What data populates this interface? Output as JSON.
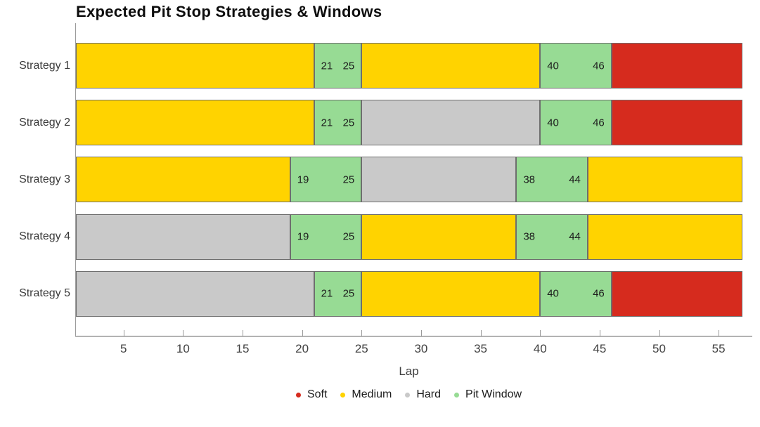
{
  "title": "Expected Pit Stop Strategies & Windows",
  "chart_data": {
    "type": "bar",
    "orientation": "horizontal-stacked",
    "title": "Expected Pit Stop Strategies & Windows",
    "xlabel": "Lap",
    "xlim": [
      1,
      57
    ],
    "xticks": [
      5,
      10,
      15,
      20,
      25,
      30,
      35,
      40,
      45,
      50,
      55
    ],
    "grid": false,
    "legend_position": "bottom-center",
    "categories": [
      "Strategy 1",
      "Strategy 2",
      "Strategy 3",
      "Strategy 4",
      "Strategy 5"
    ],
    "colors": {
      "Soft": "#d62b1e",
      "Medium": "#ffd300",
      "Hard": "#c9c9c9",
      "Pit Window": "#97db94"
    },
    "legend": [
      {
        "label": "Soft",
        "color": "#d62b1e"
      },
      {
        "label": "Medium",
        "color": "#ffd300"
      },
      {
        "label": "Hard",
        "color": "#c9c9c9"
      },
      {
        "label": "Pit Window",
        "color": "#97db94"
      }
    ],
    "bars": [
      {
        "category": "Strategy 1",
        "segments": [
          {
            "compound": "Medium",
            "start": 1,
            "end": 21
          },
          {
            "compound": "Pit Window",
            "start": 21,
            "end": 25,
            "show_labels": true
          },
          {
            "compound": "Medium",
            "start": 25,
            "end": 40
          },
          {
            "compound": "Pit Window",
            "start": 40,
            "end": 46,
            "show_labels": true
          },
          {
            "compound": "Soft",
            "start": 46,
            "end": 57
          }
        ]
      },
      {
        "category": "Strategy 2",
        "segments": [
          {
            "compound": "Medium",
            "start": 1,
            "end": 21
          },
          {
            "compound": "Pit Window",
            "start": 21,
            "end": 25,
            "show_labels": true
          },
          {
            "compound": "Hard",
            "start": 25,
            "end": 40
          },
          {
            "compound": "Pit Window",
            "start": 40,
            "end": 46,
            "show_labels": true
          },
          {
            "compound": "Soft",
            "start": 46,
            "end": 57
          }
        ]
      },
      {
        "category": "Strategy 3",
        "segments": [
          {
            "compound": "Medium",
            "start": 1,
            "end": 19
          },
          {
            "compound": "Pit Window",
            "start": 19,
            "end": 25,
            "show_labels": true
          },
          {
            "compound": "Hard",
            "start": 25,
            "end": 38
          },
          {
            "compound": "Pit Window",
            "start": 38,
            "end": 44,
            "show_labels": true
          },
          {
            "compound": "Medium",
            "start": 44,
            "end": 57
          }
        ]
      },
      {
        "category": "Strategy 4",
        "segments": [
          {
            "compound": "Hard",
            "start": 1,
            "end": 19
          },
          {
            "compound": "Pit Window",
            "start": 19,
            "end": 25,
            "show_labels": true
          },
          {
            "compound": "Medium",
            "start": 25,
            "end": 38
          },
          {
            "compound": "Pit Window",
            "start": 38,
            "end": 44,
            "show_labels": true
          },
          {
            "compound": "Medium",
            "start": 44,
            "end": 57
          }
        ]
      },
      {
        "category": "Strategy 5",
        "segments": [
          {
            "compound": "Hard",
            "start": 1,
            "end": 21
          },
          {
            "compound": "Pit Window",
            "start": 21,
            "end": 25,
            "show_labels": true
          },
          {
            "compound": "Medium",
            "start": 25,
            "end": 40
          },
          {
            "compound": "Pit Window",
            "start": 40,
            "end": 46,
            "show_labels": true
          },
          {
            "compound": "Soft",
            "start": 46,
            "end": 57
          }
        ]
      }
    ]
  }
}
